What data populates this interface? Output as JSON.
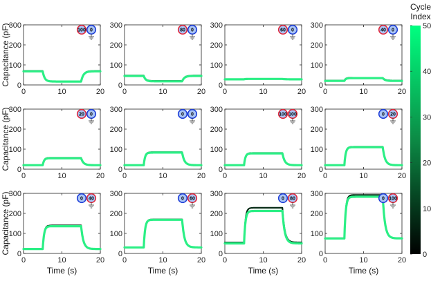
{
  "chart_data": {
    "type": "scatter",
    "layout": "3x4 grid of small multiples",
    "shared": {
      "xlabel": "Time (s)",
      "ylabel": "Capacitance (pF)",
      "xlim": [
        0,
        20
      ],
      "ylim": [
        0,
        300
      ],
      "xticks": [
        0,
        10,
        20
      ],
      "yticks": [
        0,
        100,
        200,
        300
      ],
      "step_on_s": 5,
      "step_off_s": 15
    },
    "colorbar": {
      "title_line1": "Cycle",
      "title_line2": "Index",
      "ticks": [
        0,
        10,
        20,
        30,
        40,
        50
      ],
      "range": [
        0,
        50
      ],
      "color_low": "#000000",
      "color_high": "#00ff80"
    },
    "colors": {
      "early_cycle": "#052a14",
      "late_cycle": "#2bef85",
      "electrode_pos_ring": "#e0283c",
      "electrode_neg_ring": "#1f3fd8",
      "electrode_fill": "#a9c4f5"
    },
    "panels": [
      {
        "left_label": "100",
        "right_label": "0",
        "left_ring": "red",
        "right_ring": "blue",
        "baseline_pF": 68,
        "step_pF": 17,
        "early_baseline_pF": 70,
        "early_step_pF": 17
      },
      {
        "left_label": "80",
        "right_label": "0",
        "left_ring": "red",
        "right_ring": "blue",
        "baseline_pF": 45,
        "step_pF": 18,
        "early_baseline_pF": 47,
        "early_step_pF": 20
      },
      {
        "left_label": "60",
        "right_label": "0",
        "left_ring": "red",
        "right_ring": "blue",
        "baseline_pF": 28,
        "step_pF": 30,
        "early_baseline_pF": 29,
        "early_step_pF": 30
      },
      {
        "left_label": "40",
        "right_label": "0",
        "left_ring": "red",
        "right_ring": "blue",
        "baseline_pF": 20,
        "step_pF": 34,
        "early_baseline_pF": 22,
        "early_step_pF": 36
      },
      {
        "left_label": "20",
        "right_label": "0",
        "left_ring": "red",
        "right_ring": "blue",
        "baseline_pF": 20,
        "step_pF": 55,
        "early_baseline_pF": 20,
        "early_step_pF": 57
      },
      {
        "left_label": "0",
        "right_label": "0",
        "left_ring": "blue",
        "right_ring": "blue",
        "baseline_pF": 20,
        "step_pF": 83,
        "early_baseline_pF": 20,
        "early_step_pF": 85
      },
      {
        "left_label": "100",
        "right_label": "100",
        "left_ring": "red",
        "right_ring": "red",
        "baseline_pF": 20,
        "step_pF": 79,
        "early_baseline_pF": 20,
        "early_step_pF": 81
      },
      {
        "left_label": "0",
        "right_label": "20",
        "left_ring": "blue",
        "right_ring": "red",
        "baseline_pF": 20,
        "step_pF": 110,
        "early_baseline_pF": 20,
        "early_step_pF": 112
      },
      {
        "left_label": "0",
        "right_label": "40",
        "left_ring": "blue",
        "right_ring": "red",
        "baseline_pF": 22,
        "step_pF": 136,
        "early_baseline_pF": 22,
        "early_step_pF": 140
      },
      {
        "left_label": "0",
        "right_label": "60",
        "left_ring": "blue",
        "right_ring": "red",
        "baseline_pF": 30,
        "step_pF": 168,
        "early_baseline_pF": 30,
        "early_step_pF": 170
      },
      {
        "left_label": "0",
        "right_label": "80",
        "left_ring": "blue",
        "right_ring": "red",
        "baseline_pF": 50,
        "step_pF": 212,
        "early_baseline_pF": 55,
        "early_step_pF": 228
      },
      {
        "left_label": "0",
        "right_label": "100",
        "left_ring": "blue",
        "right_ring": "red",
        "baseline_pF": 75,
        "step_pF": 283,
        "early_baseline_pF": 76,
        "early_step_pF": 292
      }
    ]
  }
}
